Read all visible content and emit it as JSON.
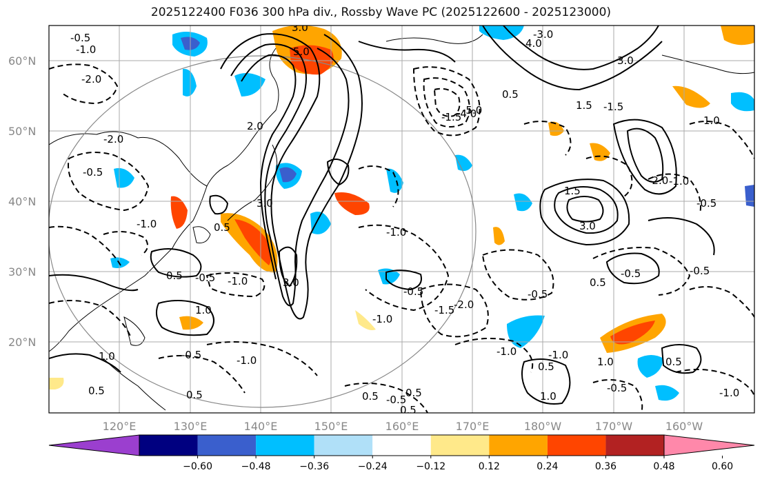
{
  "title": "2025122400 F036 300 hPa div., Rossby Wave PC (2025122600 - 2025123000)",
  "lat_labels": [
    "20°N",
    "30°N",
    "40°N",
    "50°N",
    "60°N"
  ],
  "lon_labels": [
    "120°E",
    "130°E",
    "140°E",
    "150°E",
    "160°E",
    "170°E",
    "180°W",
    "170°W",
    "160°W"
  ],
  "contour_labels": [
    "-0.5",
    "-1.0",
    "-2.0",
    "-0.5",
    "-1.5",
    "-2.0",
    "-1.0",
    "-0.5",
    "-0.5",
    "-1.0",
    "-0.5",
    "-1.0",
    "-0.5",
    "-1.0",
    "-1.5",
    "-1.0",
    "-2.0",
    "-0.5",
    "-1.0",
    "-0.5",
    "-0.5",
    "-1.0",
    "-1.0",
    "-0.5",
    "-1.0",
    "-0.5",
    "-4.0",
    "-5.0",
    "-1.5",
    "-2.0",
    "-3.0",
    "3.0",
    "5.0",
    "4.0",
    "3.0",
    "3.0",
    "1.5",
    "2.0",
    "1.0",
    "1.5",
    "3.0",
    "3.0",
    "0.5",
    "1.0",
    "0.5",
    "1.0",
    "0.5",
    "0.5",
    "0.5",
    "0.5",
    "1.0",
    "1.0",
    "0.5",
    "0.5",
    "0.5",
    "0.5",
    "0.5"
  ],
  "colorbar": {
    "ticks": [
      "−0.60",
      "−0.48",
      "−0.36",
      "−0.24",
      "−0.12",
      "0.12",
      "0.24",
      "0.36",
      "0.48",
      "0.60"
    ],
    "colors": [
      "#9b3fcf",
      "#000080",
      "#3a5fcd",
      "#00bfff",
      "#b0e0f8",
      "#ffffff",
      "#ffe98a",
      "#ffa500",
      "#ff4500",
      "#b22222",
      "#ff88aa"
    ]
  }
}
